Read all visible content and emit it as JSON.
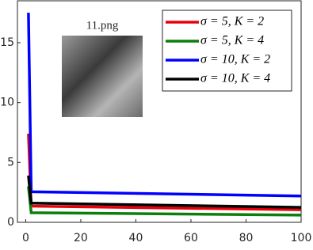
{
  "chart_data": {
    "type": "line",
    "annotation": "11.png",
    "x": [
      1,
      2,
      100
    ],
    "series": [
      {
        "name": "σ = 5, K = 2",
        "color": "#e8000b",
        "values": [
          7.4,
          1.35,
          1.05
        ]
      },
      {
        "name": "σ = 5, K = 4",
        "color": "#0a7f0a",
        "values": [
          3.0,
          0.8,
          0.6
        ]
      },
      {
        "name": "σ = 10, K = 2",
        "color": "#0000ff",
        "values": [
          17.5,
          2.55,
          2.2
        ]
      },
      {
        "name": "σ = 10, K = 4",
        "color": "#000000",
        "values": [
          3.9,
          1.6,
          1.25
        ]
      }
    ],
    "xlim": [
      -3,
      100
    ],
    "ylim": [
      0,
      18.5
    ],
    "xticks": [
      0,
      20,
      40,
      60,
      80,
      100
    ],
    "yticks": [
      0,
      5,
      10,
      15
    ],
    "grid": false,
    "legend": "top-right"
  }
}
